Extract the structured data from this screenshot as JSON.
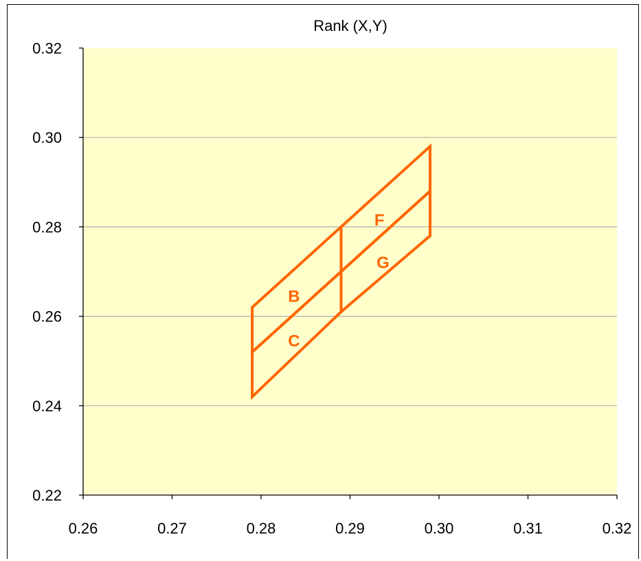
{
  "chart_data": {
    "type": "line",
    "title": "Rank (X,Y)",
    "xlabel": "",
    "ylabel": "",
    "xlim": [
      0.26,
      0.32
    ],
    "ylim": [
      0.22,
      0.32
    ],
    "x_ticks": [
      "0.26",
      "0.27",
      "0.28",
      "0.29",
      "0.30",
      "0.31",
      "0.32"
    ],
    "y_ticks": [
      "0.22",
      "0.24",
      "0.26",
      "0.28",
      "0.30",
      "0.32"
    ],
    "x_tick_values": [
      0.26,
      0.27,
      0.28,
      0.29,
      0.3,
      0.31,
      0.32
    ],
    "y_tick_values": [
      0.22,
      0.24,
      0.26,
      0.28,
      0.3,
      0.32
    ],
    "grid": "horizontal",
    "plot_background": "#ffffcc",
    "series_color": "#ff6600",
    "gridline_color": "#b0b0b0",
    "bins": [
      {
        "label": "B",
        "polygon": [
          [
            0.279,
            0.262
          ],
          [
            0.289,
            0.28
          ],
          [
            0.289,
            0.27
          ],
          [
            0.279,
            0.252
          ]
        ],
        "label_at": [
          0.2837,
          0.2645
        ]
      },
      {
        "label": "C",
        "polygon": [
          [
            0.279,
            0.252
          ],
          [
            0.289,
            0.27
          ],
          [
            0.289,
            0.261
          ],
          [
            0.279,
            0.242
          ]
        ],
        "label_at": [
          0.2837,
          0.2545
        ]
      },
      {
        "label": "F",
        "polygon": [
          [
            0.289,
            0.28
          ],
          [
            0.299,
            0.298
          ],
          [
            0.299,
            0.288
          ],
          [
            0.289,
            0.27
          ]
        ],
        "label_at": [
          0.2933,
          0.2815
        ]
      },
      {
        "label": "G",
        "polygon": [
          [
            0.289,
            0.27
          ],
          [
            0.299,
            0.288
          ],
          [
            0.299,
            0.278
          ],
          [
            0.289,
            0.261
          ]
        ],
        "label_at": [
          0.2937,
          0.272
        ]
      }
    ]
  }
}
